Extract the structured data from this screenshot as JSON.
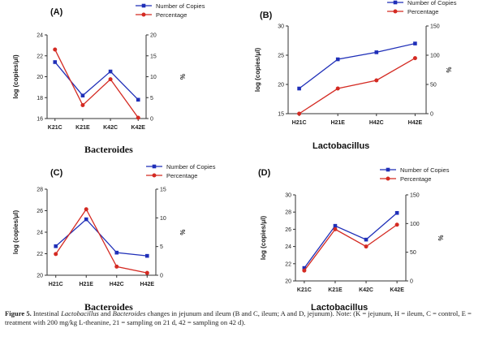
{
  "colors": {
    "copies": "#1f2fb8",
    "percentage": "#d42a22",
    "axis": "#333333"
  },
  "legend": {
    "copies": "Number of Copies",
    "percentage": "Percentage"
  },
  "caption": {
    "label": "Figure 5.",
    "part1": " Intestinal ",
    "genus1": "Lactobacillus",
    "part2": " and ",
    "genus2": "Bacteroides",
    "part3": " changes in jejunum and ileum (B and C, ileum; A and D, jejunum). Note: (K = jejunum, H = ileum, C = control, E = treatment with 200 mg/kg L-theanine, 21 = sampling on 21 d, 42 = sampling on 42 d)."
  },
  "chart_data": [
    {
      "type": "line",
      "panel": "(A)",
      "subtitle": "Bacteroides",
      "categories": [
        "K21C",
        "K21E",
        "K42C",
        "K42E"
      ],
      "ylabel": "log (copies/μl)",
      "y2label": "%",
      "ylim": [
        16,
        24
      ],
      "yticks": [
        16,
        18,
        20,
        22,
        24
      ],
      "y2lim": [
        0,
        20
      ],
      "y2ticks": [
        0,
        5,
        10,
        15,
        20
      ],
      "series": [
        {
          "name": "Number of Copies",
          "axis": "left",
          "values": [
            21.4,
            18.2,
            20.5,
            17.8
          ]
        },
        {
          "name": "Percentage",
          "axis": "right",
          "values": [
            16.5,
            3.2,
            9.4,
            0.2
          ]
        }
      ]
    },
    {
      "type": "line",
      "panel": "(B)",
      "subtitle": "Lactobacillus",
      "categories": [
        "H21C",
        "H21E",
        "H42C",
        "H42E"
      ],
      "ylabel": "log (copies/μl)",
      "y2label": "%",
      "ylim": [
        15,
        30
      ],
      "yticks": [
        15,
        20,
        25,
        30
      ],
      "y2lim": [
        0,
        150
      ],
      "y2ticks": [
        0,
        50,
        100,
        150
      ],
      "series": [
        {
          "name": "Number of Copies",
          "axis": "left",
          "values": [
            19.3,
            24.3,
            25.5,
            27
          ]
        },
        {
          "name": "Percentage",
          "axis": "right",
          "values": [
            0,
            43,
            57,
            95
          ]
        }
      ]
    },
    {
      "type": "line",
      "panel": "(C)",
      "subtitle": "Bacteroides",
      "categories": [
        "H21C",
        "H21E",
        "H42C",
        "H42E"
      ],
      "ylabel": "log (copies/μl)",
      "y2label": "%",
      "ylim": [
        20,
        28
      ],
      "yticks": [
        20,
        22,
        24,
        26,
        28
      ],
      "y2lim": [
        0,
        15
      ],
      "y2ticks": [
        0,
        5,
        10,
        15
      ],
      "series": [
        {
          "name": "Number of Copies",
          "axis": "left",
          "values": [
            22.7,
            25.2,
            22.1,
            21.8
          ]
        },
        {
          "name": "Percentage",
          "axis": "right",
          "values": [
            3.7,
            11.5,
            1.5,
            0.4
          ]
        }
      ]
    },
    {
      "type": "line",
      "panel": "(D)",
      "subtitle": "Lactobacillus",
      "categories": [
        "K21C",
        "K21E",
        "K42C",
        "K42E"
      ],
      "ylabel": "log (copies/μl)",
      "y2label": "%",
      "ylim": [
        20,
        30
      ],
      "yticks": [
        20,
        22,
        24,
        26,
        28,
        30
      ],
      "y2lim": [
        0,
        150
      ],
      "y2ticks": [
        0,
        50,
        100,
        150
      ],
      "series": [
        {
          "name": "Number of Copies",
          "axis": "left",
          "values": [
            21.5,
            26.4,
            24.8,
            27.9
          ]
        },
        {
          "name": "Percentage",
          "axis": "right",
          "values": [
            18,
            90,
            60,
            98
          ]
        }
      ]
    }
  ]
}
